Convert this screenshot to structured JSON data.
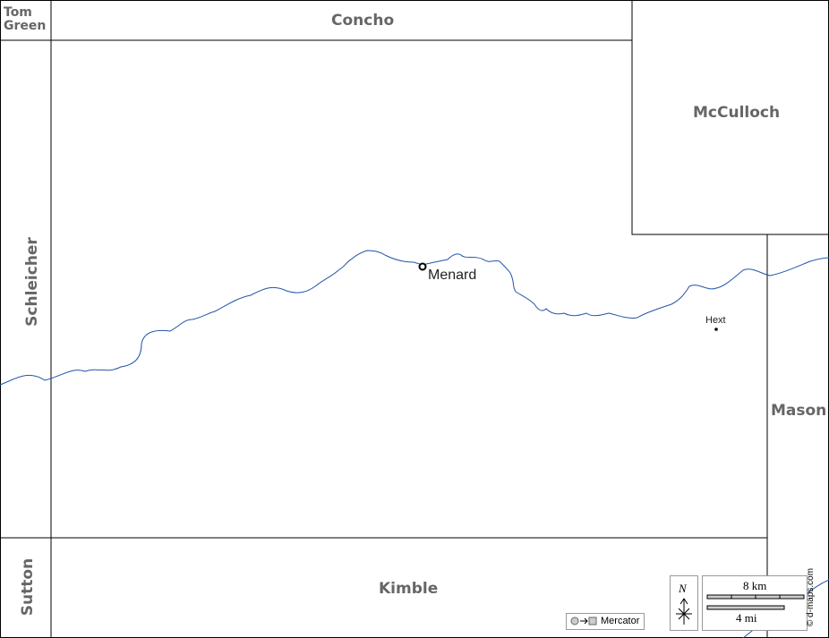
{
  "counties": [
    "Tom Green",
    "Concho",
    "McCulloch",
    "Schleicher",
    "Mason",
    "Sutton",
    "Kimble"
  ],
  "places": [
    {
      "name": "Menard"
    },
    {
      "name": "Hext"
    }
  ],
  "compass": "N",
  "scale": {
    "metric": "8 km",
    "imperial": "4 mi"
  },
  "projection": "Mercator",
  "credit": "© d-maps.com"
}
